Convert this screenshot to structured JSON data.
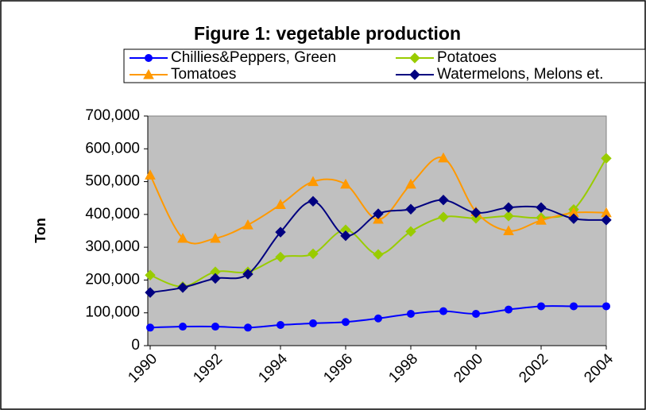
{
  "chart_data": {
    "type": "line",
    "title": "Figure 1: vegetable production",
    "y_label": "Ton",
    "x": [
      1990,
      1991,
      1992,
      1993,
      1994,
      1995,
      1996,
      1997,
      1998,
      1999,
      2000,
      2001,
      2002,
      2003,
      2004
    ],
    "xlim": [
      1990,
      2004
    ],
    "xticks": [
      1990,
      1992,
      1994,
      1996,
      1998,
      2000,
      2002,
      2004
    ],
    "ylim": [
      0,
      700000
    ],
    "yticks": [
      0,
      {
        "value": 100000,
        "label": "100,000"
      },
      {
        "value": 200000,
        "label": "200,000"
      },
      {
        "value": 300000,
        "label": "300,000"
      },
      {
        "value": 400000,
        "label": "400,000"
      },
      {
        "value": 500000,
        "label": "500,000"
      },
      {
        "value": 600000,
        "label": "600,000"
      },
      {
        "value": 700000,
        "label": "700,000"
      }
    ],
    "smooth": true,
    "series": [
      {
        "name": "Chillies&Peppers, Green",
        "color": "#0000ff",
        "marker": "circle",
        "values": [
          55000,
          58000,
          58000,
          55000,
          63000,
          68000,
          72000,
          83000,
          97000,
          105000,
          97000,
          110000,
          120000,
          120000,
          120000
        ]
      },
      {
        "name": "Potatoes",
        "color": "#99cc00",
        "marker": "diamond",
        "values": [
          215000,
          180000,
          225000,
          225000,
          270000,
          280000,
          353000,
          278000,
          348000,
          392000,
          388000,
          395000,
          390000,
          415000,
          571000
        ]
      },
      {
        "name": "Tomatoes",
        "color": "#ff9900",
        "marker": "triangle",
        "values": [
          520000,
          327000,
          327000,
          368000,
          430000,
          500000,
          492000,
          385000,
          492000,
          572000,
          408000,
          350000,
          382000,
          405000,
          405000
        ]
      },
      {
        "name": "Watermelons, Melons et.",
        "color": "#000080",
        "marker": "diamond",
        "values": [
          162000,
          177000,
          205000,
          218000,
          346000,
          440000,
          335000,
          402000,
          416000,
          444000,
          405000,
          421000,
          421000,
          387000,
          383000
        ]
      }
    ]
  }
}
